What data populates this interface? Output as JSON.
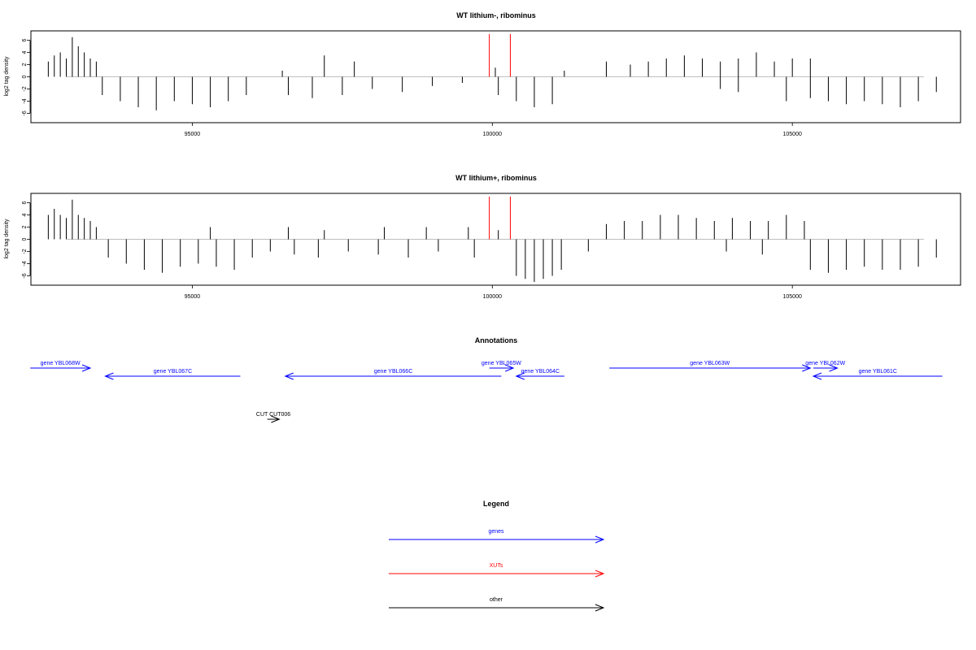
{
  "chart_data": [
    {
      "type": "bar",
      "title": "WT lithium-, ribominus",
      "ylabel": "log2 tag density",
      "xlabel": "",
      "xlim": [
        92500,
        107600
      ],
      "ylim": [
        -7,
        7
      ],
      "yticks": [
        -6,
        -4,
        -2,
        0,
        2,
        4,
        6
      ],
      "xticks": [
        95000,
        100000,
        105000
      ],
      "xtick_labels": [
        "95000",
        "100000",
        "105000"
      ],
      "xut_markers": [
        99950,
        100300
      ],
      "series": [
        {
          "strand": "plus",
          "values": [
            [
              92600,
              2.5
            ],
            [
              92700,
              3.5
            ],
            [
              92800,
              4
            ],
            [
              92900,
              3
            ],
            [
              93000,
              6.5
            ],
            [
              93100,
              5
            ],
            [
              93200,
              4
            ],
            [
              93300,
              3
            ],
            [
              93400,
              2.5
            ],
            [
              96500,
              1
            ],
            [
              97200,
              3.5
            ],
            [
              97700,
              2.5
            ],
            [
              100050,
              1.5
            ],
            [
              101200,
              1
            ],
            [
              101900,
              2.5
            ],
            [
              102300,
              2
            ],
            [
              102600,
              2.5
            ],
            [
              102900,
              3
            ],
            [
              103200,
              3.5
            ],
            [
              103500,
              3
            ],
            [
              103800,
              2.5
            ],
            [
              104100,
              3
            ],
            [
              104400,
              4
            ],
            [
              104700,
              2.5
            ],
            [
              105000,
              3
            ],
            [
              105300,
              3
            ]
          ]
        },
        {
          "strand": "minus",
          "values": [
            [
              93500,
              -3
            ],
            [
              93800,
              -4
            ],
            [
              94100,
              -5
            ],
            [
              94400,
              -5.5
            ],
            [
              94700,
              -4
            ],
            [
              95000,
              -4.5
            ],
            [
              95300,
              -5
            ],
            [
              95600,
              -4
            ],
            [
              95900,
              -3
            ],
            [
              96600,
              -3
            ],
            [
              97000,
              -3.5
            ],
            [
              97500,
              -3
            ],
            [
              98000,
              -2
            ],
            [
              98500,
              -2.5
            ],
            [
              99000,
              -1.5
            ],
            [
              99500,
              -1
            ],
            [
              100100,
              -3
            ],
            [
              100400,
              -4
            ],
            [
              100700,
              -5
            ],
            [
              101000,
              -4.5
            ],
            [
              103800,
              -2
            ],
            [
              104100,
              -2.5
            ],
            [
              104900,
              -4
            ],
            [
              105300,
              -3.5
            ],
            [
              105600,
              -4
            ],
            [
              105900,
              -4.5
            ],
            [
              106200,
              -4
            ],
            [
              106500,
              -4.5
            ],
            [
              106800,
              -5
            ],
            [
              107100,
              -4
            ],
            [
              107400,
              -2.5
            ]
          ]
        }
      ]
    },
    {
      "type": "bar",
      "title": "WT lithium+, ribominus",
      "ylabel": "log2 tag density",
      "xlabel": "",
      "xlim": [
        92500,
        107600
      ],
      "ylim": [
        -7,
        7
      ],
      "yticks": [
        -6,
        -4,
        -2,
        0,
        2,
        4,
        6
      ],
      "xticks": [
        95000,
        100000,
        105000
      ],
      "xtick_labels": [
        "95000",
        "100000",
        "105000"
      ],
      "xut_markers": [
        99950,
        100300
      ],
      "series": [
        {
          "strand": "plus",
          "values": [
            [
              92600,
              4
            ],
            [
              92700,
              5
            ],
            [
              92800,
              4
            ],
            [
              92900,
              3.5
            ],
            [
              93000,
              6.5
            ],
            [
              93100,
              4
            ],
            [
              93200,
              3.5
            ],
            [
              93300,
              3
            ],
            [
              93400,
              2
            ],
            [
              95300,
              2
            ],
            [
              96600,
              2
            ],
            [
              97200,
              1.5
            ],
            [
              98200,
              2
            ],
            [
              98900,
              2
            ],
            [
              99600,
              2
            ],
            [
              100100,
              1.5
            ],
            [
              101900,
              2.5
            ],
            [
              102200,
              3
            ],
            [
              102500,
              3
            ],
            [
              102800,
              4
            ],
            [
              103100,
              4
            ],
            [
              103400,
              3.5
            ],
            [
              103700,
              3
            ],
            [
              104000,
              3.5
            ],
            [
              104300,
              3
            ],
            [
              104600,
              3
            ],
            [
              104900,
              4
            ],
            [
              105200,
              3
            ]
          ]
        },
        {
          "strand": "minus",
          "values": [
            [
              93600,
              -3
            ],
            [
              93900,
              -4
            ],
            [
              94200,
              -5
            ],
            [
              94500,
              -5.5
            ],
            [
              94800,
              -4.5
            ],
            [
              95100,
              -4
            ],
            [
              95400,
              -4.5
            ],
            [
              95700,
              -5
            ],
            [
              96000,
              -3
            ],
            [
              96300,
              -2
            ],
            [
              96700,
              -2.5
            ],
            [
              97100,
              -3
            ],
            [
              97600,
              -2
            ],
            [
              98100,
              -2.5
            ],
            [
              98600,
              -3
            ],
            [
              99100,
              -2
            ],
            [
              99700,
              -3
            ],
            [
              100400,
              -6
            ],
            [
              100550,
              -6.5
            ],
            [
              100700,
              -7
            ],
            [
              100850,
              -6.5
            ],
            [
              101000,
              -6
            ],
            [
              101150,
              -5
            ],
            [
              101600,
              -2
            ],
            [
              103900,
              -2
            ],
            [
              104500,
              -2.5
            ],
            [
              105300,
              -5
            ],
            [
              105600,
              -5.5
            ],
            [
              105900,
              -5
            ],
            [
              106200,
              -4.5
            ],
            [
              106500,
              -5
            ],
            [
              106800,
              -5
            ],
            [
              107100,
              -4.5
            ],
            [
              107400,
              -3
            ]
          ]
        }
      ]
    }
  ],
  "annotations": {
    "title": "Annotations",
    "xlim": [
      92500,
      107600
    ],
    "features": [
      {
        "label": "gene YBL068W",
        "start": 92300,
        "end": 93300,
        "strand": "+",
        "row": 0,
        "type": "genes"
      },
      {
        "label": "gene YBL067C",
        "start": 93550,
        "end": 95800,
        "strand": "-",
        "row": 1,
        "type": "genes"
      },
      {
        "label": "gene YBL066C",
        "start": 96550,
        "end": 100150,
        "strand": "-",
        "row": 1,
        "type": "genes"
      },
      {
        "label": "gene YBL065W",
        "start": 99950,
        "end": 100350,
        "strand": "+",
        "row": 0,
        "type": "genes"
      },
      {
        "label": "gene YBL064C",
        "start": 100400,
        "end": 101200,
        "strand": "-",
        "row": 1,
        "type": "genes"
      },
      {
        "label": "gene YBL063W",
        "start": 101950,
        "end": 105300,
        "strand": "+",
        "row": 0,
        "type": "genes"
      },
      {
        "label": "gene YBL062W",
        "start": 105350,
        "end": 105750,
        "strand": "+",
        "row": 0,
        "type": "genes"
      },
      {
        "label": "gene YBL061C",
        "start": 105350,
        "end": 107500,
        "strand": "-",
        "row": 1,
        "type": "genes"
      },
      {
        "label": "CUT CUT006",
        "start": 96250,
        "end": 96450,
        "strand": "+",
        "row": 2,
        "type": "other"
      }
    ]
  },
  "legend": {
    "title": "Legend",
    "items": [
      {
        "label": "genes",
        "color": "#0000ff"
      },
      {
        "label": "XUTs",
        "color": "#ff0000"
      },
      {
        "label": "other",
        "color": "#000000"
      }
    ]
  },
  "colors": {
    "genes": "#0000ff",
    "xuts": "#ff0000",
    "other": "#000000",
    "bars": "#000000"
  }
}
